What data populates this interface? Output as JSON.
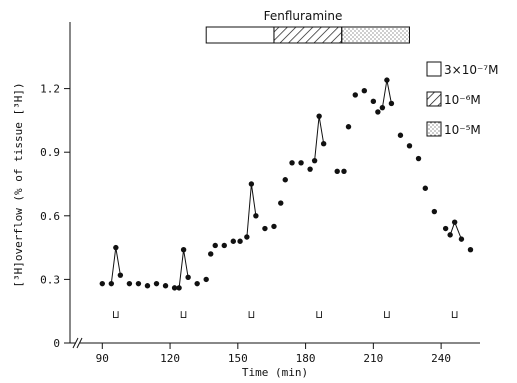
{
  "chart_data": {
    "type": "scatter",
    "title": "",
    "xlabel": "Time (min)",
    "ylabel": "[³H]overflow (% of tissue [³H])",
    "xlim": [
      85,
      255
    ],
    "ylim": [
      0,
      1.5
    ],
    "x_ticks": [
      90,
      120,
      150,
      180,
      210,
      240
    ],
    "y_ticks": [
      0,
      0.3,
      0.6,
      0.9,
      1.2
    ],
    "y_tick_labels": [
      "0",
      "0.3",
      "0.6",
      "0.9",
      "1.2"
    ],
    "grid": false,
    "points": [
      {
        "x": 90,
        "y": 0.28
      },
      {
        "x": 94,
        "y": 0.28
      },
      {
        "x": 96,
        "y": 0.45
      },
      {
        "x": 98,
        "y": 0.32
      },
      {
        "x": 102,
        "y": 0.28
      },
      {
        "x": 106,
        "y": 0.28
      },
      {
        "x": 110,
        "y": 0.27
      },
      {
        "x": 114,
        "y": 0.28
      },
      {
        "x": 118,
        "y": 0.27
      },
      {
        "x": 122,
        "y": 0.26
      },
      {
        "x": 124,
        "y": 0.26
      },
      {
        "x": 126,
        "y": 0.44
      },
      {
        "x": 128,
        "y": 0.31
      },
      {
        "x": 132,
        "y": 0.28
      },
      {
        "x": 136,
        "y": 0.3
      },
      {
        "x": 138,
        "y": 0.42
      },
      {
        "x": 140,
        "y": 0.46
      },
      {
        "x": 144,
        "y": 0.46
      },
      {
        "x": 148,
        "y": 0.48
      },
      {
        "x": 151,
        "y": 0.48
      },
      {
        "x": 154,
        "y": 0.5
      },
      {
        "x": 156,
        "y": 0.75
      },
      {
        "x": 158,
        "y": 0.6
      },
      {
        "x": 162,
        "y": 0.54
      },
      {
        "x": 166,
        "y": 0.55
      },
      {
        "x": 169,
        "y": 0.66
      },
      {
        "x": 171,
        "y": 0.77
      },
      {
        "x": 174,
        "y": 0.85
      },
      {
        "x": 178,
        "y": 0.85
      },
      {
        "x": 182,
        "y": 0.82
      },
      {
        "x": 184,
        "y": 0.86
      },
      {
        "x": 186,
        "y": 1.07
      },
      {
        "x": 188,
        "y": 0.94
      },
      {
        "x": 194,
        "y": 0.81
      },
      {
        "x": 197,
        "y": 0.81
      },
      {
        "x": 199,
        "y": 1.02
      },
      {
        "x": 202,
        "y": 1.17
      },
      {
        "x": 206,
        "y": 1.19
      },
      {
        "x": 210,
        "y": 1.14
      },
      {
        "x": 212,
        "y": 1.09
      },
      {
        "x": 214,
        "y": 1.11
      },
      {
        "x": 216,
        "y": 1.24
      },
      {
        "x": 218,
        "y": 1.13
      },
      {
        "x": 222,
        "y": 0.98
      },
      {
        "x": 226,
        "y": 0.93
      },
      {
        "x": 230,
        "y": 0.87
      },
      {
        "x": 233,
        "y": 0.73
      },
      {
        "x": 237,
        "y": 0.62
      },
      {
        "x": 242,
        "y": 0.54
      },
      {
        "x": 244,
        "y": 0.51
      },
      {
        "x": 246,
        "y": 0.57
      },
      {
        "x": 249,
        "y": 0.49
      },
      {
        "x": 253,
        "y": 0.44
      }
    ],
    "spikes": [
      {
        "base_x": 94,
        "base_y": 0.28,
        "peak_x": 96,
        "peak_y": 0.45,
        "end_x": 98,
        "end_y": 0.32
      },
      {
        "base_x": 124,
        "base_y": 0.26,
        "peak_x": 126,
        "peak_y": 0.44,
        "end_x": 128,
        "end_y": 0.31
      },
      {
        "base_x": 154,
        "base_y": 0.5,
        "peak_x": 156,
        "peak_y": 0.75,
        "end_x": 158,
        "end_y": 0.6
      },
      {
        "base_x": 184,
        "base_y": 0.86,
        "peak_x": 186,
        "peak_y": 1.07,
        "end_x": 188,
        "end_y": 0.94
      },
      {
        "base_x": 214,
        "base_y": 1.11,
        "peak_x": 216,
        "peak_y": 1.24,
        "end_x": 218,
        "end_y": 1.13
      },
      {
        "base_x": 244,
        "base_y": 0.51,
        "peak_x": 246,
        "peak_y": 0.57,
        "end_x": 249,
        "end_y": 0.49
      }
    ],
    "stimulation_marks": [
      96,
      126,
      156,
      186,
      216,
      246
    ],
    "stimulation_symbol": "⊔",
    "drug": {
      "label": "Fenfluramine",
      "periods": [
        {
          "start": 136,
          "end": 166,
          "pattern": "open",
          "concentration": "3×10⁻⁷M"
        },
        {
          "start": 166,
          "end": 196,
          "pattern": "hatched",
          "concentration": "10⁻⁶M"
        },
        {
          "start": 196,
          "end": 226,
          "pattern": "dotted",
          "concentration": "10⁻⁵M"
        }
      ]
    },
    "legend_position": "right"
  }
}
